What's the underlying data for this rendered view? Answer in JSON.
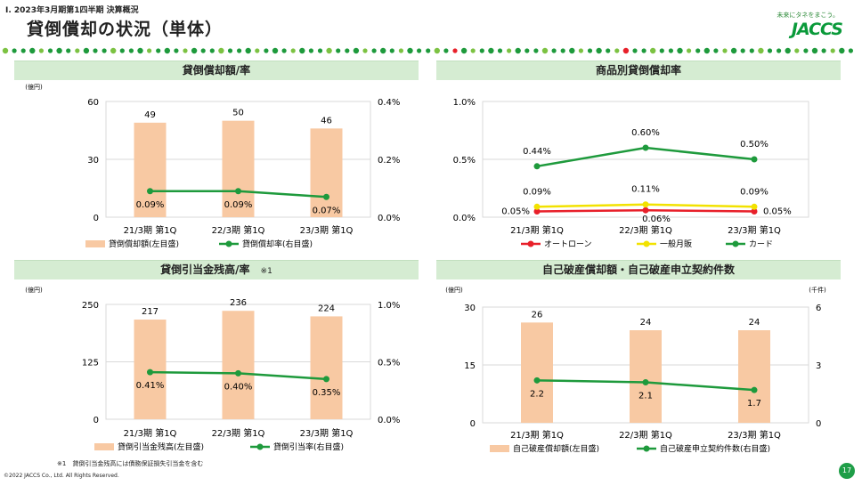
{
  "header": {
    "section": "Ⅰ. 2023年3月期第1四半期 決算概況",
    "title": "貸倒償却の状況（単体）",
    "tagline": "未来にタネをまこう。",
    "logo": "JACCS"
  },
  "panels": [
    {
      "title": "貸倒償却額/率",
      "note": ""
    },
    {
      "title": "商品別貸倒償却率",
      "note": ""
    },
    {
      "title": "貸倒引当金残高/率",
      "note": "※1"
    },
    {
      "title": "自己破産償却額・自己破産申立契約件数",
      "note": ""
    }
  ],
  "chart_data": [
    {
      "type": "bar",
      "title": "貸倒償却額/率",
      "categories": [
        "21/3期 第1Q",
        "22/3期 第1Q",
        "23/3期 第1Q"
      ],
      "y_unit": "(億円)",
      "ylim": [
        0,
        60
      ],
      "yticks": [
        "0",
        "30",
        "60"
      ],
      "y2lim": [
        0,
        0.4
      ],
      "y2ticks": [
        "0.0%",
        "0.2%",
        "0.4%"
      ],
      "series": [
        {
          "name": "貸倒償却額(左目盛)",
          "kind": "bar",
          "values": [
            49,
            50,
            46
          ],
          "labels": [
            "49",
            "50",
            "46"
          ],
          "color": "#f8c9a3"
        },
        {
          "name": "貸倒償却率(右目盛)",
          "kind": "line",
          "axis": "right",
          "values": [
            0.09,
            0.09,
            0.07
          ],
          "labels": [
            "0.09%",
            "0.09%",
            "0.07%"
          ],
          "color": "#1e9a3c"
        }
      ]
    },
    {
      "type": "line",
      "title": "商品別貸倒償却率",
      "categories": [
        "21/3期 第1Q",
        "22/3期 第1Q",
        "23/3期 第1Q"
      ],
      "ylim": [
        0,
        1.0
      ],
      "yticks": [
        "0.0%",
        "0.5%",
        "1.0%"
      ],
      "series": [
        {
          "name": "オートローン",
          "values": [
            0.05,
            0.06,
            0.05
          ],
          "labels": [
            "0.05%",
            "0.06%",
            "0.05%"
          ],
          "color": "#e8202a"
        },
        {
          "name": "一般月販",
          "values": [
            0.09,
            0.11,
            0.09
          ],
          "labels": [
            "0.09%",
            "0.11%",
            "0.09%"
          ],
          "color": "#f2e200"
        },
        {
          "name": "カード",
          "values": [
            0.44,
            0.6,
            0.5
          ],
          "labels": [
            "0.44%",
            "0.60%",
            "0.50%"
          ],
          "color": "#1e9a3c"
        }
      ]
    },
    {
      "type": "bar",
      "title": "貸倒引当金残高/率",
      "categories": [
        "21/3期 第1Q",
        "22/3期 第1Q",
        "23/3期 第1Q"
      ],
      "y_unit": "(億円)",
      "ylim": [
        0,
        250
      ],
      "yticks": [
        "0",
        "125",
        "250"
      ],
      "y2lim": [
        0,
        1.0
      ],
      "y2ticks": [
        "0.0%",
        "0.5%",
        "1.0%"
      ],
      "series": [
        {
          "name": "貸倒引当金残高(左目盛)",
          "kind": "bar",
          "values": [
            217,
            236,
            224
          ],
          "labels": [
            "217",
            "236",
            "224"
          ],
          "color": "#f8c9a3"
        },
        {
          "name": "貸倒引当率(右目盛)",
          "kind": "line",
          "axis": "right",
          "values": [
            0.41,
            0.4,
            0.35
          ],
          "labels": [
            "0.41%",
            "0.40%",
            "0.35%"
          ],
          "color": "#1e9a3c"
        }
      ]
    },
    {
      "type": "bar",
      "title": "自己破産償却額・自己破産申立契約件数",
      "categories": [
        "21/3期 第1Q",
        "22/3期 第1Q",
        "23/3期 第1Q"
      ],
      "y_unit": "(億円)",
      "y2_unit": "(千件)",
      "ylim": [
        0,
        30
      ],
      "yticks": [
        "0",
        "15",
        "30"
      ],
      "y2lim": [
        0,
        6
      ],
      "y2ticks": [
        "0",
        "3",
        "6"
      ],
      "series": [
        {
          "name": "自己破産償却額(左目盛)",
          "kind": "bar",
          "values": [
            26,
            24,
            24
          ],
          "labels": [
            "26",
            "24",
            "24"
          ],
          "color": "#f8c9a3"
        },
        {
          "name": "自己破産申立契約件数(右目盛)",
          "kind": "line",
          "axis": "right",
          "values": [
            2.2,
            2.1,
            1.7
          ],
          "labels": [
            "2.2",
            "2.1",
            "1.7"
          ],
          "color": "#1e9a3c"
        }
      ]
    }
  ],
  "footnote": "※1　貸倒引当金残高には債務保証損失引当金を含む",
  "copyright": "©2022 JACCS Co., Ltd. All Rights Reserved.",
  "page_number": "17"
}
